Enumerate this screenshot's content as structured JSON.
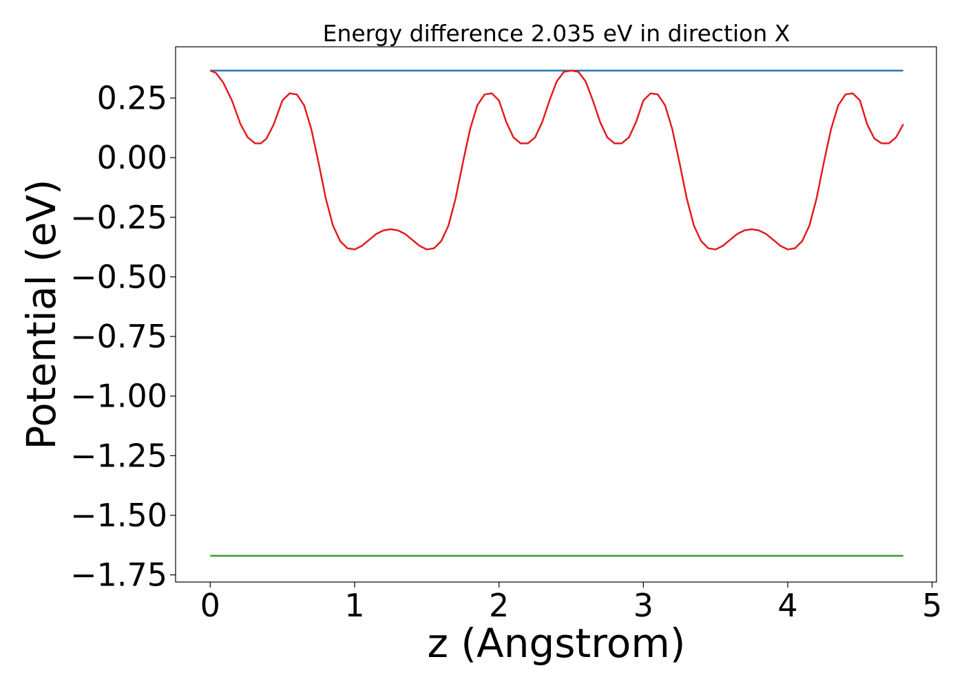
{
  "chart_data": {
    "type": "line",
    "title": "Energy difference 2.035 eV in direction X",
    "xlabel": "z (Angstrom)",
    "ylabel": "Potential (eV)",
    "xlim": [
      -0.24,
      5.03
    ],
    "ylim": [
      -1.78,
      0.465
    ],
    "xticks": [
      0,
      1,
      2,
      3,
      4,
      5
    ],
    "xtick_labels": [
      "0",
      "1",
      "2",
      "3",
      "4",
      "5"
    ],
    "yticks": [
      0.25,
      0.0,
      -0.25,
      -0.5,
      -0.75,
      -1.0,
      -1.25,
      -1.5,
      -1.75
    ],
    "ytick_labels": [
      "0.25",
      "0.00",
      "−0.25",
      "−0.50",
      "−0.75",
      "−1.00",
      "−1.25",
      "−1.50",
      "−1.75"
    ],
    "grid": false,
    "legend": "none",
    "series": [
      {
        "color": "#1f77b4",
        "x": [
          0,
          4.8
        ],
        "y": [
          0.365,
          0.365
        ]
      },
      {
        "color": "#2ca02c",
        "x": [
          0,
          4.8
        ],
        "y": [
          -1.67,
          -1.67
        ]
      },
      {
        "color": "#e31a1c",
        "x": [
          0,
          0.04,
          0.09,
          0.15,
          0.21,
          0.26,
          0.31,
          0.35,
          0.39,
          0.44,
          0.5,
          0.55,
          0.6,
          0.65,
          0.7,
          0.75,
          0.8,
          0.85,
          0.9,
          0.95,
          1.0,
          1.05,
          1.1,
          1.15,
          1.2,
          1.25,
          1.3,
          1.35,
          1.4,
          1.45,
          1.5,
          1.55,
          1.6,
          1.65,
          1.7,
          1.75,
          1.8,
          1.85,
          1.9,
          1.95,
          2.0,
          2.05,
          2.1,
          2.15,
          2.2,
          2.25,
          2.3,
          2.35,
          2.4,
          2.45,
          2.5,
          2.55,
          2.6,
          2.65,
          2.7,
          2.75,
          2.8,
          2.85,
          2.9,
          2.95,
          3.0,
          3.05,
          3.1,
          3.15,
          3.2,
          3.25,
          3.3,
          3.35,
          3.4,
          3.45,
          3.5,
          3.55,
          3.6,
          3.65,
          3.7,
          3.75,
          3.8,
          3.85,
          3.9,
          3.95,
          4.0,
          4.05,
          4.1,
          4.15,
          4.2,
          4.25,
          4.3,
          4.35,
          4.4,
          4.45,
          4.5,
          4.55,
          4.6,
          4.65,
          4.7,
          4.75,
          4.8
        ],
        "y": [
          0.365,
          0.355,
          0.315,
          0.24,
          0.14,
          0.085,
          0.06,
          0.06,
          0.08,
          0.14,
          0.24,
          0.27,
          0.265,
          0.22,
          0.12,
          -0.02,
          -0.17,
          -0.285,
          -0.35,
          -0.38,
          -0.385,
          -0.37,
          -0.345,
          -0.32,
          -0.305,
          -0.3,
          -0.305,
          -0.32,
          -0.345,
          -0.37,
          -0.385,
          -0.38,
          -0.35,
          -0.285,
          -0.17,
          -0.02,
          0.12,
          0.22,
          0.265,
          0.27,
          0.24,
          0.15,
          0.085,
          0.06,
          0.06,
          0.085,
          0.15,
          0.24,
          0.32,
          0.36,
          0.365,
          0.36,
          0.32,
          0.24,
          0.15,
          0.085,
          0.06,
          0.06,
          0.085,
          0.15,
          0.24,
          0.27,
          0.265,
          0.22,
          0.12,
          -0.02,
          -0.17,
          -0.285,
          -0.35,
          -0.38,
          -0.385,
          -0.37,
          -0.345,
          -0.32,
          -0.305,
          -0.3,
          -0.305,
          -0.32,
          -0.345,
          -0.37,
          -0.385,
          -0.38,
          -0.35,
          -0.285,
          -0.17,
          -0.02,
          0.12,
          0.22,
          0.265,
          0.27,
          0.24,
          0.14,
          0.08,
          0.06,
          0.06,
          0.085,
          0.14
        ]
      }
    ]
  }
}
